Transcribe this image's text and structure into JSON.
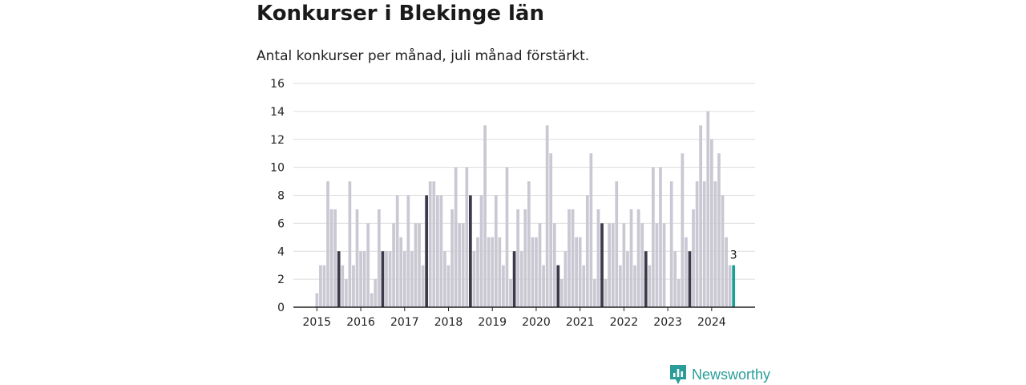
{
  "header": {
    "title": "Konkurser i Blekinge län",
    "subtitle": "Antal konkurser per månad, juli månad förstärkt."
  },
  "brand": {
    "name": "Newsworthy",
    "icon": "newsworthy-chart-icon"
  },
  "colors": {
    "bar": "#c9c8d3",
    "july": "#3b3a4a",
    "latest": "#1a9f95",
    "grid": "#dcdcdc",
    "axis": "#222222"
  },
  "chart_data": {
    "type": "bar",
    "title": "Konkurser i Blekinge län",
    "subtitle": "Antal konkurser per månad, juli månad förstärkt.",
    "xlabel": "",
    "ylabel": "",
    "ylim": [
      0,
      16
    ],
    "yticks": [
      0,
      2,
      4,
      6,
      8,
      10,
      12,
      14,
      16
    ],
    "xticks": [
      "2015",
      "2016",
      "2017",
      "2018",
      "2019",
      "2020",
      "2021",
      "2022",
      "2023",
      "2024"
    ],
    "grid": true,
    "start": "2015-01",
    "end": "2024-07",
    "highlight_month": "07",
    "monthly_values": {
      "2015": [
        1,
        3,
        3,
        9,
        7,
        7,
        4,
        3,
        2,
        9,
        3,
        7
      ],
      "2016": [
        4,
        4,
        6,
        1,
        2,
        7,
        4,
        4,
        4,
        6,
        8,
        5
      ],
      "2017": [
        4,
        8,
        4,
        6,
        6,
        3,
        8,
        9,
        9,
        8,
        8,
        4
      ],
      "2018": [
        3,
        7,
        10,
        6,
        6,
        10,
        8,
        4,
        5,
        8,
        13,
        5
      ],
      "2019": [
        5,
        8,
        5,
        3,
        10,
        2,
        4,
        7,
        4,
        7,
        9,
        5
      ],
      "2020": [
        5,
        6,
        3,
        13,
        11,
        6,
        3,
        2,
        4,
        7,
        7,
        5
      ],
      "2021": [
        5,
        3,
        8,
        11,
        2,
        7,
        6,
        2,
        6,
        6,
        9,
        3
      ],
      "2022": [
        6,
        4,
        7,
        3,
        7,
        6,
        4,
        3,
        10,
        6,
        10,
        6
      ],
      "2023": [
        0,
        9,
        4,
        2,
        11,
        5,
        4,
        7,
        9,
        13,
        9,
        14
      ],
      "2024": [
        12,
        9,
        11,
        8,
        5,
        3,
        3
      ]
    },
    "annotations": [
      {
        "period": "2024-07",
        "text": "3"
      }
    ]
  }
}
